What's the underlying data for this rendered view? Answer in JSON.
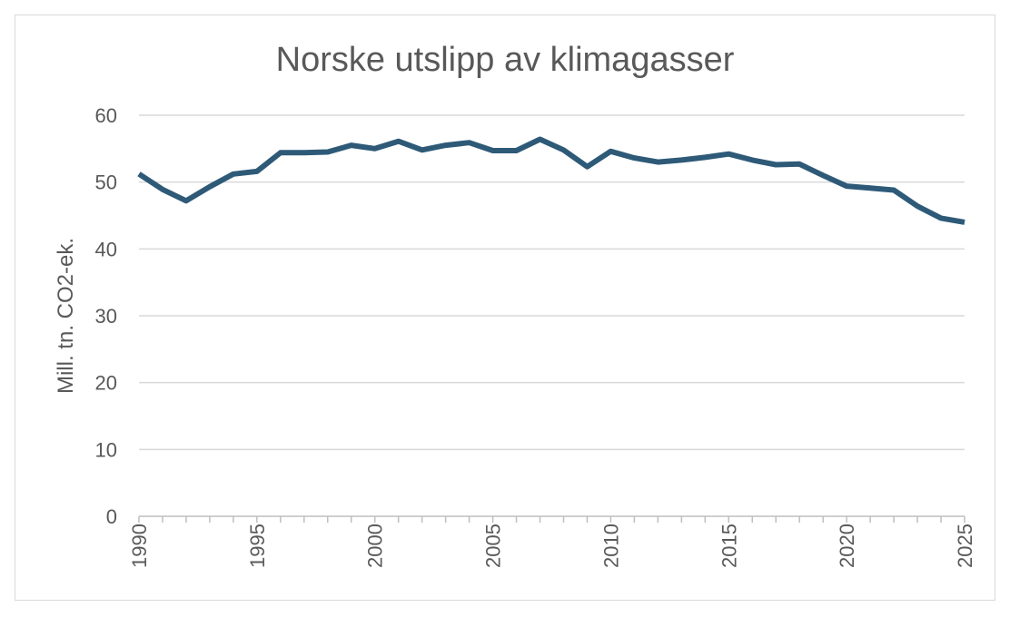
{
  "chart_data": {
    "type": "line",
    "title": "Norske utslipp av klimagasser",
    "xlabel": "",
    "ylabel": "Mill. tn. CO2-ek.",
    "ylim": [
      0,
      60
    ],
    "yticks": [
      0,
      10,
      20,
      30,
      40,
      50,
      60
    ],
    "xlim": [
      1990,
      2025
    ],
    "xtick_labels": [
      "1990",
      "1995",
      "2000",
      "2005",
      "2010",
      "2015",
      "2020",
      "2025"
    ],
    "grid": true,
    "legend": "none",
    "line_color": "#2e5a78",
    "series": [
      {
        "x": [
          1990,
          1991,
          1992,
          1993,
          1994,
          1995,
          1996,
          1997,
          1998,
          1999,
          2000,
          2001,
          2002,
          2003,
          2004,
          2005,
          2006,
          2007,
          2008,
          2009,
          2010,
          2011,
          2012,
          2013,
          2014,
          2015,
          2016,
          2017,
          2018,
          2019,
          2020,
          2021,
          2022,
          2023,
          2024,
          2025
        ],
        "values": [
          51.2,
          48.9,
          47.2,
          49.3,
          51.2,
          51.6,
          54.4,
          54.4,
          54.5,
          55.5,
          55.0,
          56.1,
          54.8,
          55.5,
          55.9,
          54.7,
          54.7,
          56.4,
          54.8,
          52.3,
          54.6,
          53.6,
          53.0,
          53.3,
          53.7,
          54.2,
          53.3,
          52.6,
          52.7,
          51.0,
          49.4,
          49.1,
          48.8,
          46.4,
          44.6,
          44.0
        ]
      }
    ]
  }
}
